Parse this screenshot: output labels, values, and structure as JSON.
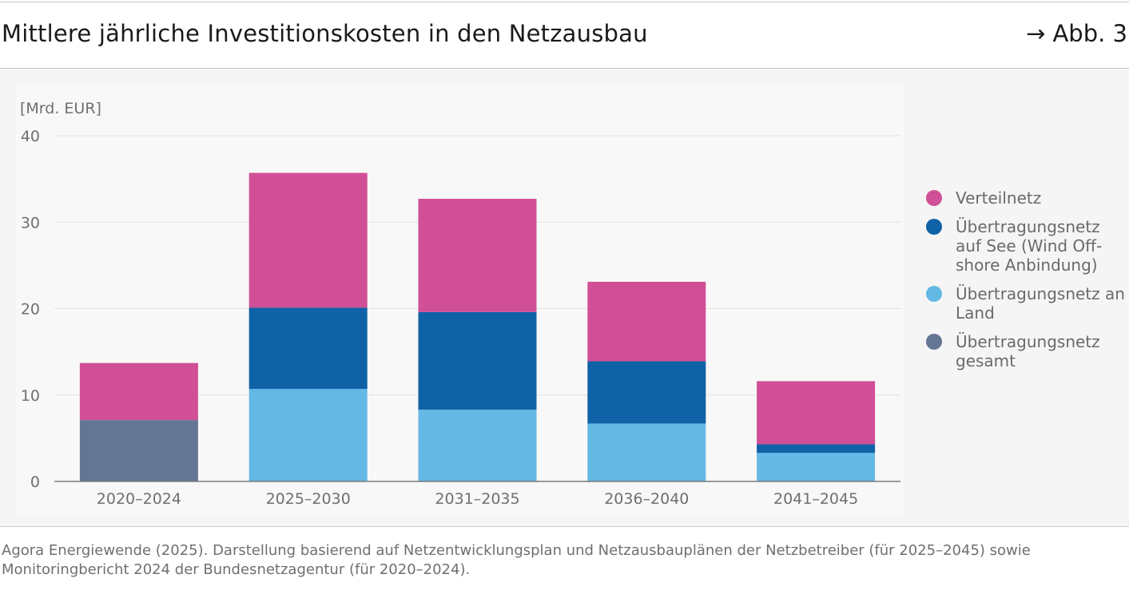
{
  "header": {
    "title": "Mittlere jährliche Investitionskosten in den Netzausbau",
    "figure_ref": "→ Abb. 3"
  },
  "chart_data": {
    "type": "bar",
    "stacked": true,
    "unit_label": "[Mrd. EUR]",
    "ylim": [
      0,
      40
    ],
    "yticks": [
      0,
      10,
      20,
      30,
      40
    ],
    "grid": true,
    "legend_position": "right",
    "categories": [
      "2020–2024",
      "2025–2030",
      "2031–2035",
      "2036–2040",
      "2041–2045"
    ],
    "series": [
      {
        "name": "Übertragungsnetz gesamt",
        "color": "#647694",
        "values": [
          7.1,
          0,
          0,
          0,
          0
        ]
      },
      {
        "name": "Übertragungsnetz an Land",
        "color": "#64b8e4",
        "values": [
          0,
          10.7,
          8.3,
          6.7,
          3.3
        ]
      },
      {
        "name": "Übertragungsnetz auf See (Wind Offshore Anbindung)",
        "color": "#0f62a6",
        "values": [
          0,
          9.4,
          11.3,
          7.2,
          1.0
        ]
      },
      {
        "name": "Verteilnetz",
        "color": "#d04f96",
        "values": [
          6.6,
          15.6,
          13.1,
          9.2,
          7.3
        ]
      }
    ]
  },
  "legend": {
    "items": [
      {
        "label": "Verteilnetz",
        "color": "#d04f96"
      },
      {
        "label": "Übertragungsnetz auf See (Wind Off-shore Anbindung)",
        "color": "#0f62a6"
      },
      {
        "label": "Übertragungsnetz an Land",
        "color": "#64b8e4"
      },
      {
        "label": "Übertragungsnetz gesamt",
        "color": "#647694"
      }
    ]
  },
  "footer": {
    "source": "Agora Energiewende (2025). Darstellung basierend auf Netzentwicklungsplan und Netzausbauplänen der Netzbetreiber (für 2025–2045) sowie Monitoringbericht 2024 der Bundesnetzagentur (für 2020–2024)."
  }
}
